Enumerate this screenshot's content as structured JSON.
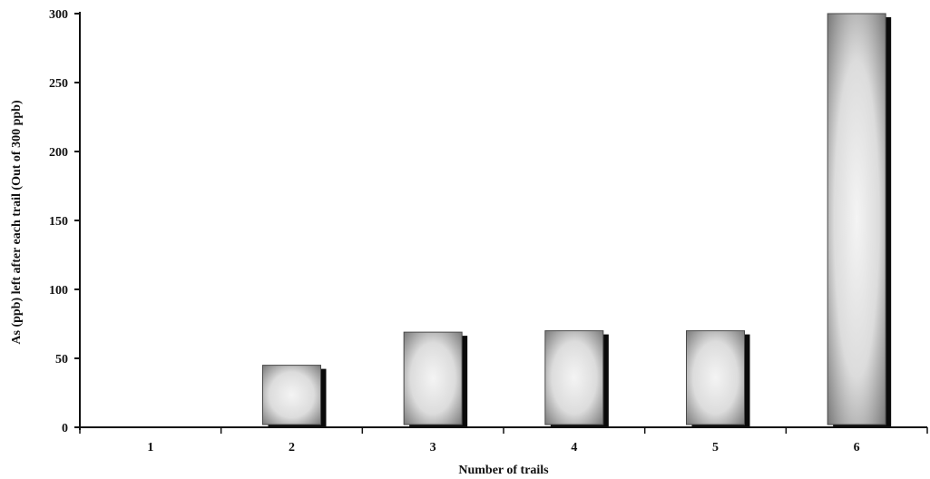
{
  "chart_data": {
    "type": "bar",
    "categories": [
      "1",
      "2",
      "3",
      "4",
      "5",
      "6"
    ],
    "values": [
      0,
      45,
      69,
      70,
      70,
      300
    ],
    "title": "",
    "xlabel": "Number of trails",
    "ylabel": "As (ppb) left after each trail (Out of 300 ppb)",
    "ylim": [
      0,
      300
    ],
    "yticks": [
      0,
      50,
      100,
      150,
      200,
      250,
      300
    ],
    "grid": false,
    "legend": "none",
    "colors": {
      "axis": "#111111",
      "bar_center": "#f4f4f4",
      "bar_edge": "#7a7a7a",
      "bar_shadow": "#0a0a0a"
    }
  }
}
